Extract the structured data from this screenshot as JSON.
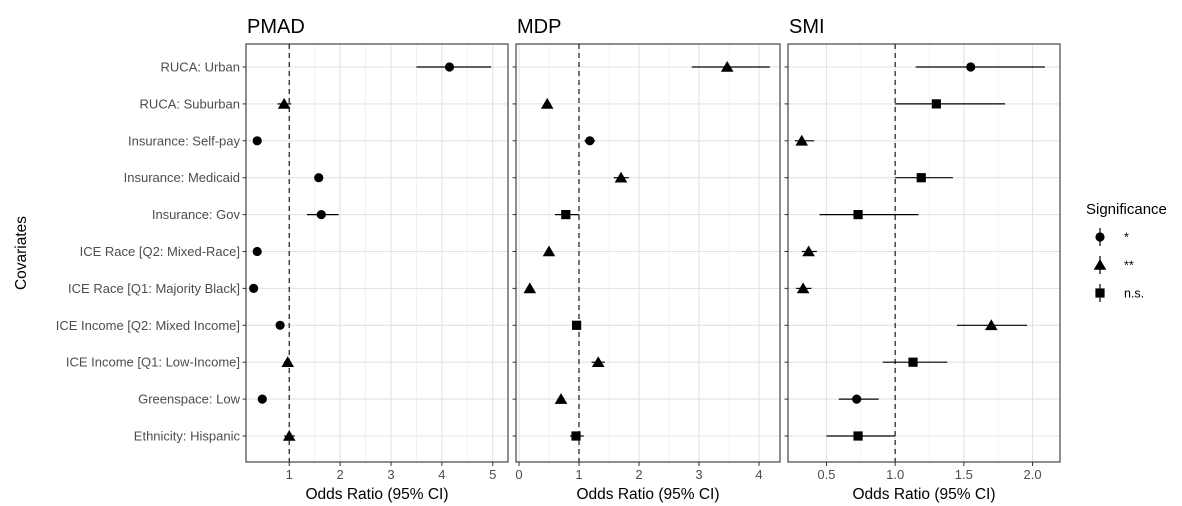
{
  "chart_data": {
    "type": "forest",
    "ylabel": "Covariates",
    "xlabel": "Odds Ratio (95% CI)",
    "covariates": [
      "RUCA: Urban",
      "RUCA: Suburban",
      "Insurance: Self-pay",
      "Insurance: Medicaid",
      "Insurance: Gov",
      "ICE Race [Q2: Mixed-Race]",
      "ICE Race [Q1: Majority Black]",
      "ICE Income [Q2: Mixed Income]",
      "ICE Income [Q1: Low-Income]",
      "Greenspace: Low",
      "Ethnicity: Hispanic"
    ],
    "legend": {
      "title": "Significance",
      "entries": [
        {
          "label": "*",
          "shape": "circle"
        },
        {
          "label": "**",
          "shape": "triangle"
        },
        {
          "label": "n.s.",
          "shape": "square"
        }
      ]
    },
    "reference_line": 1,
    "grid": true,
    "panels": [
      {
        "title": "PMAD",
        "xlim": [
          0.15,
          5.3
        ],
        "ticks": [
          1,
          2,
          3,
          4,
          5
        ],
        "tick_labels": [
          "1",
          "2",
          "3",
          "4",
          "5"
        ],
        "points": [
          {
            "or": 4.15,
            "lo": 3.5,
            "hi": 4.97,
            "sig": "*"
          },
          {
            "or": 0.9,
            "lo": 0.77,
            "hi": 1.04,
            "sig": "**"
          },
          {
            "or": 0.37,
            "lo": 0.33,
            "hi": 0.41,
            "sig": "*"
          },
          {
            "or": 1.58,
            "lo": 1.5,
            "hi": 1.66,
            "sig": "*"
          },
          {
            "or": 1.63,
            "lo": 1.35,
            "hi": 1.97,
            "sig": "*"
          },
          {
            "or": 0.37,
            "lo": 0.34,
            "hi": 0.4,
            "sig": "*"
          },
          {
            "or": 0.3,
            "lo": 0.27,
            "hi": 0.33,
            "sig": "*"
          },
          {
            "or": 0.82,
            "lo": 0.77,
            "hi": 0.87,
            "sig": "*"
          },
          {
            "or": 0.97,
            "lo": 0.9,
            "hi": 1.04,
            "sig": "**"
          },
          {
            "or": 0.47,
            "lo": 0.43,
            "hi": 0.51,
            "sig": "*"
          },
          {
            "or": 1.0,
            "lo": 0.9,
            "hi": 1.11,
            "sig": "**"
          }
        ]
      },
      {
        "title": "MDP",
        "xlim": [
          -0.05,
          4.35
        ],
        "ticks": [
          0,
          1,
          2,
          3,
          4
        ],
        "tick_labels": [
          "0",
          "1",
          "2",
          "3",
          "4"
        ],
        "points": [
          {
            "or": 3.47,
            "lo": 2.88,
            "hi": 4.18,
            "sig": "**"
          },
          {
            "or": 0.47,
            "lo": 0.42,
            "hi": 0.53,
            "sig": "**"
          },
          {
            "or": 1.18,
            "lo": 1.09,
            "hi": 1.27,
            "sig": "*"
          },
          {
            "or": 1.7,
            "lo": 1.58,
            "hi": 1.83,
            "sig": "**"
          },
          {
            "or": 0.78,
            "lo": 0.6,
            "hi": 1.0,
            "sig": "n.s."
          },
          {
            "or": 0.5,
            "lo": 0.46,
            "hi": 0.54,
            "sig": "**"
          },
          {
            "or": 0.18,
            "lo": 0.15,
            "hi": 0.21,
            "sig": "**"
          },
          {
            "or": 0.96,
            "lo": 0.9,
            "hi": 1.02,
            "sig": "n.s."
          },
          {
            "or": 1.32,
            "lo": 1.21,
            "hi": 1.43,
            "sig": "**"
          },
          {
            "or": 0.7,
            "lo": 0.64,
            "hi": 0.76,
            "sig": "**"
          },
          {
            "or": 0.95,
            "lo": 0.85,
            "hi": 1.08,
            "sig": "n.s."
          }
        ]
      },
      {
        "title": "SMI",
        "xlim": [
          0.22,
          2.2
        ],
        "ticks": [
          0.5,
          1.0,
          1.5,
          2.0
        ],
        "tick_labels": [
          "0.5",
          "1.0",
          "1.5",
          "2.0"
        ],
        "points": [
          {
            "or": 1.55,
            "lo": 1.15,
            "hi": 2.09,
            "sig": "*"
          },
          {
            "or": 1.3,
            "lo": 1.0,
            "hi": 1.8,
            "sig": "n.s."
          },
          {
            "or": 0.32,
            "lo": 0.27,
            "hi": 0.41,
            "sig": "**"
          },
          {
            "or": 1.19,
            "lo": 1.0,
            "hi": 1.42,
            "sig": "n.s."
          },
          {
            "or": 0.73,
            "lo": 0.45,
            "hi": 1.17,
            "sig": "n.s."
          },
          {
            "or": 0.37,
            "lo": 0.32,
            "hi": 0.43,
            "sig": "**"
          },
          {
            "or": 0.33,
            "lo": 0.28,
            "hi": 0.39,
            "sig": "**"
          },
          {
            "or": 1.7,
            "lo": 1.45,
            "hi": 1.96,
            "sig": "**"
          },
          {
            "or": 1.13,
            "lo": 0.91,
            "hi": 1.38,
            "sig": "n.s."
          },
          {
            "or": 0.72,
            "lo": 0.59,
            "hi": 0.88,
            "sig": "*"
          },
          {
            "or": 0.73,
            "lo": 0.5,
            "hi": 1.0,
            "sig": "n.s."
          }
        ]
      }
    ]
  }
}
